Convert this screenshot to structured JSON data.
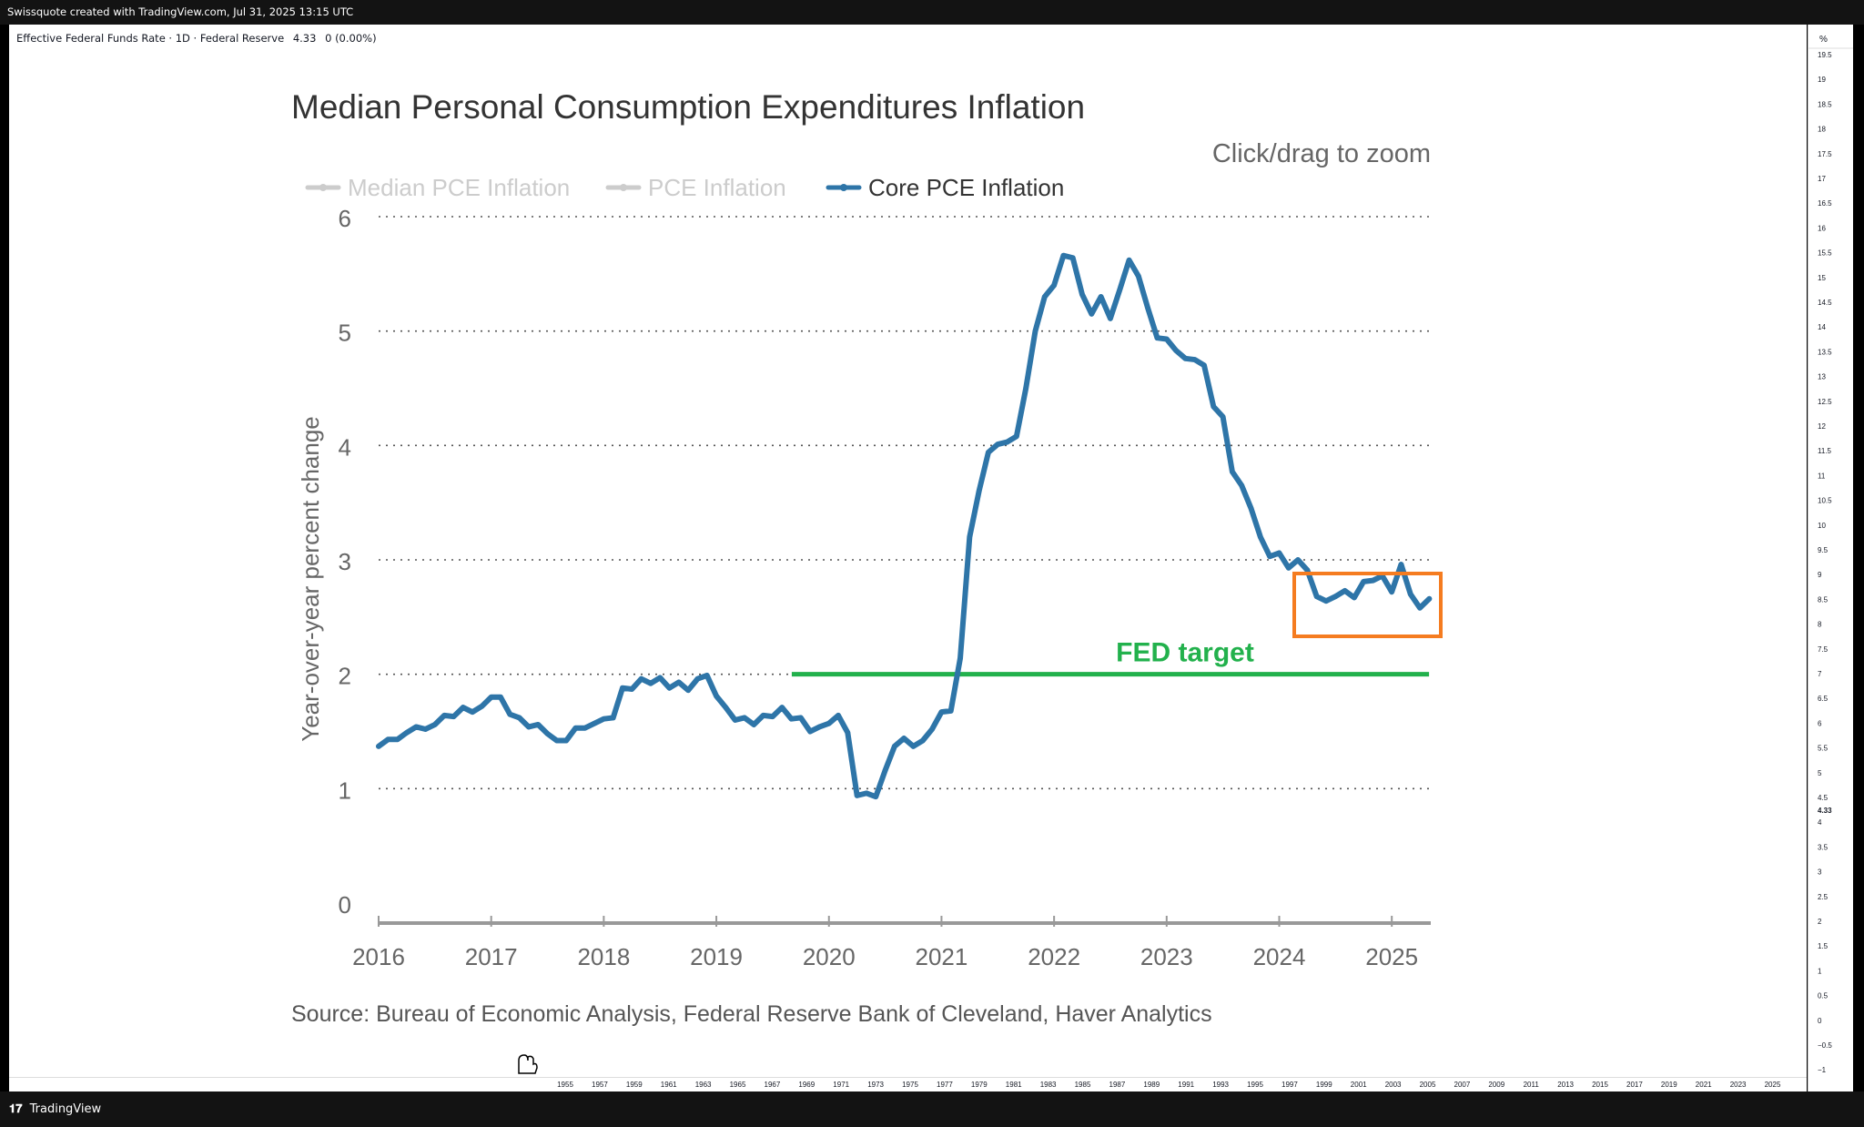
{
  "header": {
    "watermark": "Swissquote created with TradingView.com, Jul 31, 2025 13:15 UTC"
  },
  "symbol_line": {
    "name": "Effective Federal Funds Rate · 1D · Federal Reserve",
    "value": "4.33",
    "change": "0 (0.00%)"
  },
  "footer": {
    "brand": "TradingView",
    "brand_icon": "tradingview-logo-icon"
  },
  "right_axis": {
    "unit": "%",
    "labels": [
      "19.5",
      "19",
      "18.5",
      "18",
      "17.5",
      "17",
      "16.5",
      "16",
      "15.5",
      "15",
      "14.5",
      "14",
      "13.5",
      "13",
      "12.5",
      "12",
      "11.5",
      "11",
      "10.5",
      "10",
      "9.5",
      "9",
      "8.5",
      "8",
      "7.5",
      "7",
      "6.5",
      "6",
      "5.5",
      "5",
      "4.5",
      "4",
      "3.5",
      "3",
      "2.5",
      "2",
      "1.5",
      "1",
      "0.5",
      "0",
      "−0.5",
      "−1"
    ],
    "current_value": "4.33"
  },
  "time_axis": {
    "labels": [
      "1955",
      "1957",
      "1959",
      "1961",
      "1963",
      "1965",
      "1967",
      "1969",
      "1971",
      "1973",
      "1975",
      "1977",
      "1979",
      "1981",
      "1983",
      "1985",
      "1987",
      "1989",
      "1991",
      "1993",
      "1995",
      "1997",
      "1999",
      "2001",
      "2003",
      "2005",
      "2007",
      "2009",
      "2011",
      "2013",
      "2015",
      "2017",
      "2019",
      "2021",
      "2023",
      "2025"
    ]
  },
  "annotations": {
    "fed_target_label": "FED target",
    "fed_target_value": 2.0,
    "fed_target_start": 2019.67,
    "fed_target_end": 2025.25,
    "highlight_box_color": "#f57c20",
    "fed_target_color": "#22b14c"
  },
  "chart_data": {
    "type": "line",
    "title": "Median Personal Consumption Expenditures Inflation",
    "zoom_hint": "Click/drag to zoom",
    "xlabel": "",
    "ylabel": "Year-over-year percent change",
    "source": "Source: Bureau of Economic Analysis, Federal Reserve Bank of Cleveland, Haver Analytics",
    "ylim": [
      0,
      6
    ],
    "xlim": [
      2016,
      2025.33
    ],
    "yticks": [
      "0",
      "1",
      "2",
      "3",
      "4",
      "5",
      "6"
    ],
    "xticks": [
      "2016",
      "2017",
      "2018",
      "2019",
      "2020",
      "2021",
      "2022",
      "2023",
      "2024",
      "2025"
    ],
    "legend": [
      {
        "name": "Median PCE Inflation",
        "color": "#cccccc",
        "active": false
      },
      {
        "name": "PCE Inflation",
        "color": "#cccccc",
        "active": false
      },
      {
        "name": "Core PCE Inflation",
        "color": "#2e75a8",
        "active": true
      }
    ],
    "series": [
      {
        "name": "Core PCE Inflation",
        "color": "#2e75a8",
        "x_start": 2016.0,
        "x_step": 0.08333,
        "values": [
          1.37,
          1.43,
          1.43,
          1.49,
          1.54,
          1.52,
          1.56,
          1.64,
          1.63,
          1.71,
          1.67,
          1.72,
          1.8,
          1.8,
          1.65,
          1.62,
          1.54,
          1.56,
          1.48,
          1.42,
          1.42,
          1.53,
          1.53,
          1.57,
          1.61,
          1.62,
          1.88,
          1.87,
          1.96,
          1.92,
          1.97,
          1.88,
          1.93,
          1.86,
          1.96,
          1.99,
          1.81,
          1.71,
          1.6,
          1.62,
          1.56,
          1.64,
          1.63,
          1.71,
          1.61,
          1.62,
          1.5,
          1.54,
          1.57,
          1.64,
          1.49,
          0.94,
          0.96,
          0.93,
          1.16,
          1.37,
          1.44,
          1.37,
          1.42,
          1.52,
          1.67,
          1.68,
          2.14,
          3.2,
          3.6,
          3.94,
          4.01,
          4.03,
          4.08,
          4.5,
          5.0,
          5.3,
          5.4,
          5.66,
          5.64,
          5.32,
          5.15,
          5.3,
          5.11,
          5.36,
          5.62,
          5.48,
          5.2,
          4.94,
          4.93,
          4.83,
          4.76,
          4.75,
          4.7,
          4.34,
          4.25,
          3.77,
          3.65,
          3.45,
          3.2,
          3.03,
          3.06,
          2.93,
          3.0,
          2.91,
          2.68,
          2.64,
          2.68,
          2.73,
          2.67,
          2.81,
          2.82,
          2.86,
          2.72,
          2.96,
          2.7,
          2.58,
          2.66
        ]
      }
    ]
  }
}
